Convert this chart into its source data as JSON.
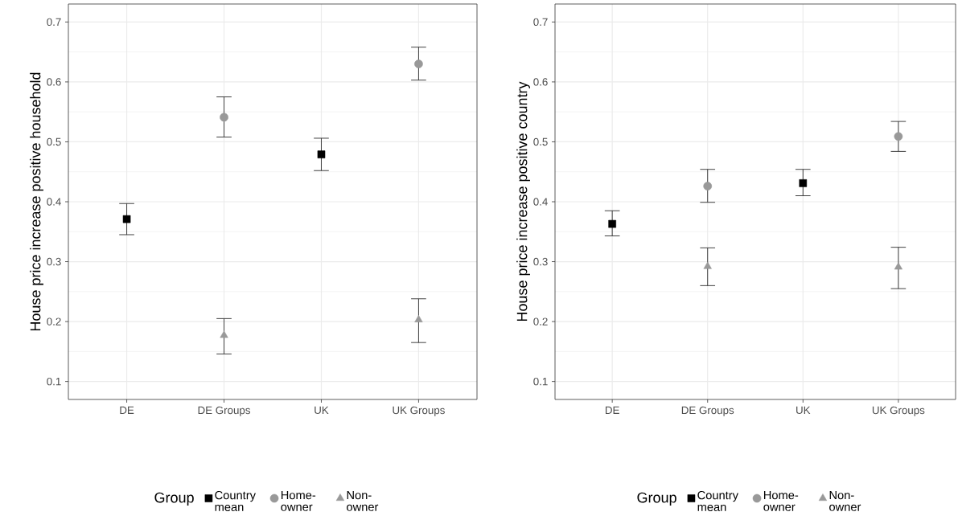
{
  "chart_data": [
    {
      "type": "scatter",
      "ylabel": "House price increase positive household",
      "categories": [
        "DE",
        "DE Groups",
        "UK",
        "UK Groups"
      ],
      "ylim": [
        0.07,
        0.73
      ],
      "yticks": [
        0.1,
        0.2,
        0.3,
        0.4,
        0.5,
        0.6,
        0.7
      ],
      "grid": true,
      "legend": "bottom",
      "legend_title": "Group",
      "series": [
        {
          "name": "Country mean",
          "color": "#000000",
          "marker": "square",
          "values": [
            0.371,
            null,
            0.479,
            null
          ],
          "errors": [
            [
              0.345,
              0.397
            ],
            null,
            [
              0.452,
              0.506
            ],
            null
          ]
        },
        {
          "name": "Home-owner",
          "color": "#999999",
          "marker": "circle",
          "values": [
            null,
            0.541,
            null,
            0.63
          ],
          "errors": [
            null,
            [
              0.508,
              0.575
            ],
            null,
            [
              0.603,
              0.658
            ]
          ]
        },
        {
          "name": "Non-owner",
          "color": "#999999",
          "marker": "triangle",
          "values": [
            null,
            0.177,
            null,
            0.203
          ],
          "errors": [
            null,
            [
              0.146,
              0.205
            ],
            null,
            [
              0.165,
              0.238
            ]
          ]
        }
      ]
    },
    {
      "type": "scatter",
      "ylabel": "House price increase positive country",
      "categories": [
        "DE",
        "DE Groups",
        "UK",
        "UK Groups"
      ],
      "ylim": [
        0.07,
        0.73
      ],
      "yticks": [
        0.1,
        0.2,
        0.3,
        0.4,
        0.5,
        0.6,
        0.7
      ],
      "grid": true,
      "legend": "bottom",
      "legend_title": "Group",
      "series": [
        {
          "name": "Country mean",
          "color": "#000000",
          "marker": "square",
          "values": [
            0.363,
            null,
            0.431,
            null
          ],
          "errors": [
            [
              0.343,
              0.385
            ],
            null,
            [
              0.41,
              0.454
            ],
            null
          ]
        },
        {
          "name": "Home-owner",
          "color": "#999999",
          "marker": "circle",
          "values": [
            null,
            0.426,
            null,
            0.509
          ],
          "errors": [
            null,
            [
              0.399,
              0.454
            ],
            null,
            [
              0.484,
              0.534
            ]
          ]
        },
        {
          "name": "Non-owner",
          "color": "#999999",
          "marker": "triangle",
          "values": [
            null,
            0.292,
            null,
            0.291
          ],
          "errors": [
            null,
            [
              0.26,
              0.323
            ],
            null,
            [
              0.255,
              0.324
            ]
          ]
        }
      ]
    }
  ]
}
